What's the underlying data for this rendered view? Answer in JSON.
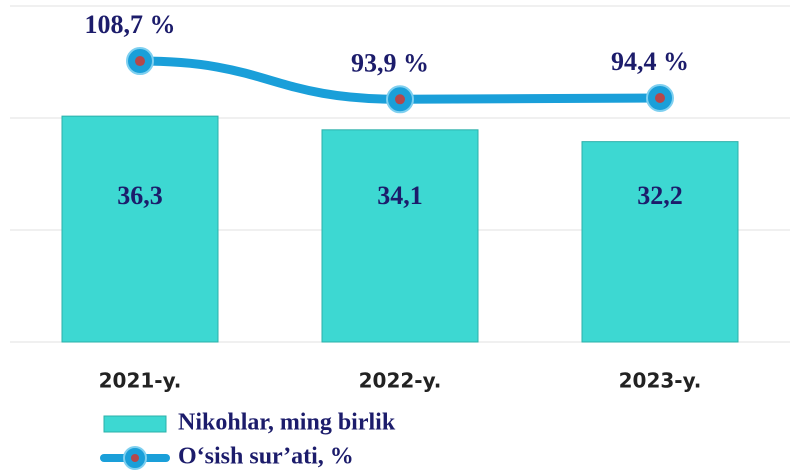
{
  "chart_data": {
    "type": "bar",
    "categories": [
      "2021-y.",
      "2022-y.",
      "2023-y."
    ],
    "series": [
      {
        "name": "Nikohlar, ming birlik",
        "type": "bar",
        "color": "#3dd8d2",
        "values": [
          36.3,
          34.1,
          32.2
        ],
        "value_labels": [
          "36,3",
          "34,1",
          "32,2"
        ]
      },
      {
        "name": "O‘sish sur’ati, %",
        "type": "line",
        "axis": "y2",
        "color": "#1a9fd9",
        "values": [
          108.7,
          93.9,
          94.4
        ],
        "value_labels": [
          "108,7 %",
          "93,9 %",
          "94,4 %"
        ]
      }
    ],
    "ylim": [
      0,
      54
    ],
    "yticks": [
      0,
      18,
      36,
      54
    ],
    "y2lim": [
      0,
      130
    ],
    "grid": true
  }
}
